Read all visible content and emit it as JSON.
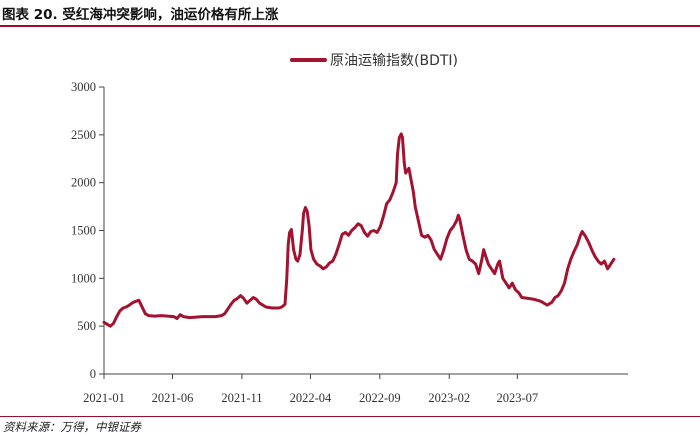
{
  "title": "图表 20. 受红海冲突影响，油运价格有所上涨",
  "source": "资料来源：万得，中银证券",
  "chart_data": {
    "type": "line",
    "ylim": [
      0,
      3000
    ],
    "yticks": [
      0,
      500,
      1000,
      1500,
      2000,
      2500,
      3000
    ],
    "xlim": [
      "2021-01-01",
      "2024-03-01"
    ],
    "xticks": [
      "2021-01",
      "2021-06",
      "2021-11",
      "2022-04",
      "2022-09",
      "2023-02",
      "2023-07"
    ],
    "legend": "top-center",
    "grid": false,
    "series": [
      {
        "name": "原油运输指数(BDTI)",
        "color": "#a3132f",
        "points": [
          [
            "2021-01-01",
            540
          ],
          [
            "2021-01-08",
            520
          ],
          [
            "2021-01-15",
            500
          ],
          [
            "2021-01-22",
            530
          ],
          [
            "2021-01-29",
            600
          ],
          [
            "2021-02-05",
            660
          ],
          [
            "2021-02-12",
            690
          ],
          [
            "2021-02-19",
            700
          ],
          [
            "2021-02-26",
            720
          ],
          [
            "2021-03-05",
            745
          ],
          [
            "2021-03-12",
            760
          ],
          [
            "2021-03-19",
            770
          ],
          [
            "2021-03-26",
            700
          ],
          [
            "2021-04-02",
            630
          ],
          [
            "2021-04-09",
            610
          ],
          [
            "2021-04-23",
            605
          ],
          [
            "2021-05-07",
            610
          ],
          [
            "2021-05-21",
            605
          ],
          [
            "2021-06-04",
            600
          ],
          [
            "2021-06-11",
            580
          ],
          [
            "2021-06-18",
            620
          ],
          [
            "2021-06-25",
            600
          ],
          [
            "2021-07-09",
            590
          ],
          [
            "2021-07-23",
            595
          ],
          [
            "2021-08-06",
            600
          ],
          [
            "2021-08-20",
            600
          ],
          [
            "2021-09-03",
            600
          ],
          [
            "2021-09-17",
            610
          ],
          [
            "2021-09-24",
            630
          ],
          [
            "2021-10-01",
            680
          ],
          [
            "2021-10-08",
            730
          ],
          [
            "2021-10-15",
            770
          ],
          [
            "2021-10-22",
            790
          ],
          [
            "2021-10-29",
            820
          ],
          [
            "2021-11-05",
            790
          ],
          [
            "2021-11-12",
            740
          ],
          [
            "2021-11-19",
            770
          ],
          [
            "2021-11-26",
            800
          ],
          [
            "2021-12-03",
            780
          ],
          [
            "2021-12-10",
            740
          ],
          [
            "2021-12-17",
            720
          ],
          [
            "2021-12-24",
            700
          ],
          [
            "2022-01-07",
            690
          ],
          [
            "2022-01-21",
            690
          ],
          [
            "2022-01-28",
            700
          ],
          [
            "2022-02-04",
            730
          ],
          [
            "2022-02-08",
            1000
          ],
          [
            "2022-02-11",
            1350
          ],
          [
            "2022-02-14",
            1480
          ],
          [
            "2022-02-18",
            1510
          ],
          [
            "2022-02-23",
            1300
          ],
          [
            "2022-02-28",
            1200
          ],
          [
            "2022-03-04",
            1180
          ],
          [
            "2022-03-09",
            1250
          ],
          [
            "2022-03-14",
            1500
          ],
          [
            "2022-03-17",
            1680
          ],
          [
            "2022-03-21",
            1740
          ],
          [
            "2022-03-25",
            1700
          ],
          [
            "2022-03-29",
            1550
          ],
          [
            "2022-04-02",
            1300
          ],
          [
            "2022-04-08",
            1200
          ],
          [
            "2022-04-15",
            1150
          ],
          [
            "2022-04-22",
            1130
          ],
          [
            "2022-04-29",
            1100
          ],
          [
            "2022-05-06",
            1120
          ],
          [
            "2022-05-13",
            1160
          ],
          [
            "2022-05-20",
            1180
          ],
          [
            "2022-05-27",
            1250
          ],
          [
            "2022-06-03",
            1350
          ],
          [
            "2022-06-10",
            1460
          ],
          [
            "2022-06-17",
            1480
          ],
          [
            "2022-06-24",
            1450
          ],
          [
            "2022-07-01",
            1500
          ],
          [
            "2022-07-08",
            1530
          ],
          [
            "2022-07-15",
            1570
          ],
          [
            "2022-07-22",
            1550
          ],
          [
            "2022-07-29",
            1480
          ],
          [
            "2022-08-05",
            1440
          ],
          [
            "2022-08-12",
            1490
          ],
          [
            "2022-08-19",
            1500
          ],
          [
            "2022-08-26",
            1480
          ],
          [
            "2022-09-02",
            1540
          ],
          [
            "2022-09-09",
            1650
          ],
          [
            "2022-09-16",
            1780
          ],
          [
            "2022-09-23",
            1820
          ],
          [
            "2022-09-30",
            1900
          ],
          [
            "2022-10-07",
            2000
          ],
          [
            "2022-10-10",
            2300
          ],
          [
            "2022-10-14",
            2470
          ],
          [
            "2022-10-18",
            2510
          ],
          [
            "2022-10-21",
            2470
          ],
          [
            "2022-10-25",
            2200
          ],
          [
            "2022-10-28",
            2100
          ],
          [
            "2022-11-04",
            2150
          ],
          [
            "2022-11-08",
            2050
          ],
          [
            "2022-11-14",
            1900
          ],
          [
            "2022-11-18",
            1750
          ],
          [
            "2022-11-25",
            1600
          ],
          [
            "2022-12-02",
            1450
          ],
          [
            "2022-12-09",
            1430
          ],
          [
            "2022-12-16",
            1450
          ],
          [
            "2022-12-23",
            1400
          ],
          [
            "2022-12-30",
            1300
          ],
          [
            "2023-01-06",
            1250
          ],
          [
            "2023-01-13",
            1200
          ],
          [
            "2023-01-20",
            1300
          ],
          [
            "2023-01-27",
            1420
          ],
          [
            "2023-02-03",
            1500
          ],
          [
            "2023-02-10",
            1540
          ],
          [
            "2023-02-17",
            1600
          ],
          [
            "2023-02-21",
            1660
          ],
          [
            "2023-02-24",
            1620
          ],
          [
            "2023-03-03",
            1450
          ],
          [
            "2023-03-10",
            1300
          ],
          [
            "2023-03-17",
            1200
          ],
          [
            "2023-03-24",
            1180
          ],
          [
            "2023-03-31",
            1150
          ],
          [
            "2023-04-07",
            1050
          ],
          [
            "2023-04-14",
            1200
          ],
          [
            "2023-04-18",
            1300
          ],
          [
            "2023-04-21",
            1250
          ],
          [
            "2023-04-28",
            1150
          ],
          [
            "2023-05-05",
            1100
          ],
          [
            "2023-05-12",
            1050
          ],
          [
            "2023-05-19",
            1150
          ],
          [
            "2023-05-23",
            1180
          ],
          [
            "2023-05-30",
            1000
          ],
          [
            "2023-06-06",
            950
          ],
          [
            "2023-06-13",
            900
          ],
          [
            "2023-06-20",
            950
          ],
          [
            "2023-06-27",
            880
          ],
          [
            "2023-07-04",
            850
          ],
          [
            "2023-07-11",
            800
          ],
          [
            "2023-07-25",
            790
          ],
          [
            "2023-08-08",
            780
          ],
          [
            "2023-08-22",
            760
          ],
          [
            "2023-09-05",
            720
          ],
          [
            "2023-09-15",
            750
          ],
          [
            "2023-09-22",
            800
          ],
          [
            "2023-09-29",
            820
          ],
          [
            "2023-10-06",
            870
          ],
          [
            "2023-10-13",
            950
          ],
          [
            "2023-10-20",
            1100
          ],
          [
            "2023-10-27",
            1200
          ],
          [
            "2023-11-03",
            1280
          ],
          [
            "2023-11-10",
            1350
          ],
          [
            "2023-11-17",
            1450
          ],
          [
            "2023-11-21",
            1490
          ],
          [
            "2023-11-28",
            1440
          ],
          [
            "2023-12-05",
            1380
          ],
          [
            "2023-12-12",
            1300
          ],
          [
            "2023-12-19",
            1230
          ],
          [
            "2023-12-26",
            1180
          ],
          [
            "2024-01-02",
            1150
          ],
          [
            "2024-01-09",
            1180
          ],
          [
            "2024-01-16",
            1100
          ],
          [
            "2024-01-23",
            1150
          ],
          [
            "2024-01-30",
            1200
          ]
        ]
      }
    ]
  }
}
